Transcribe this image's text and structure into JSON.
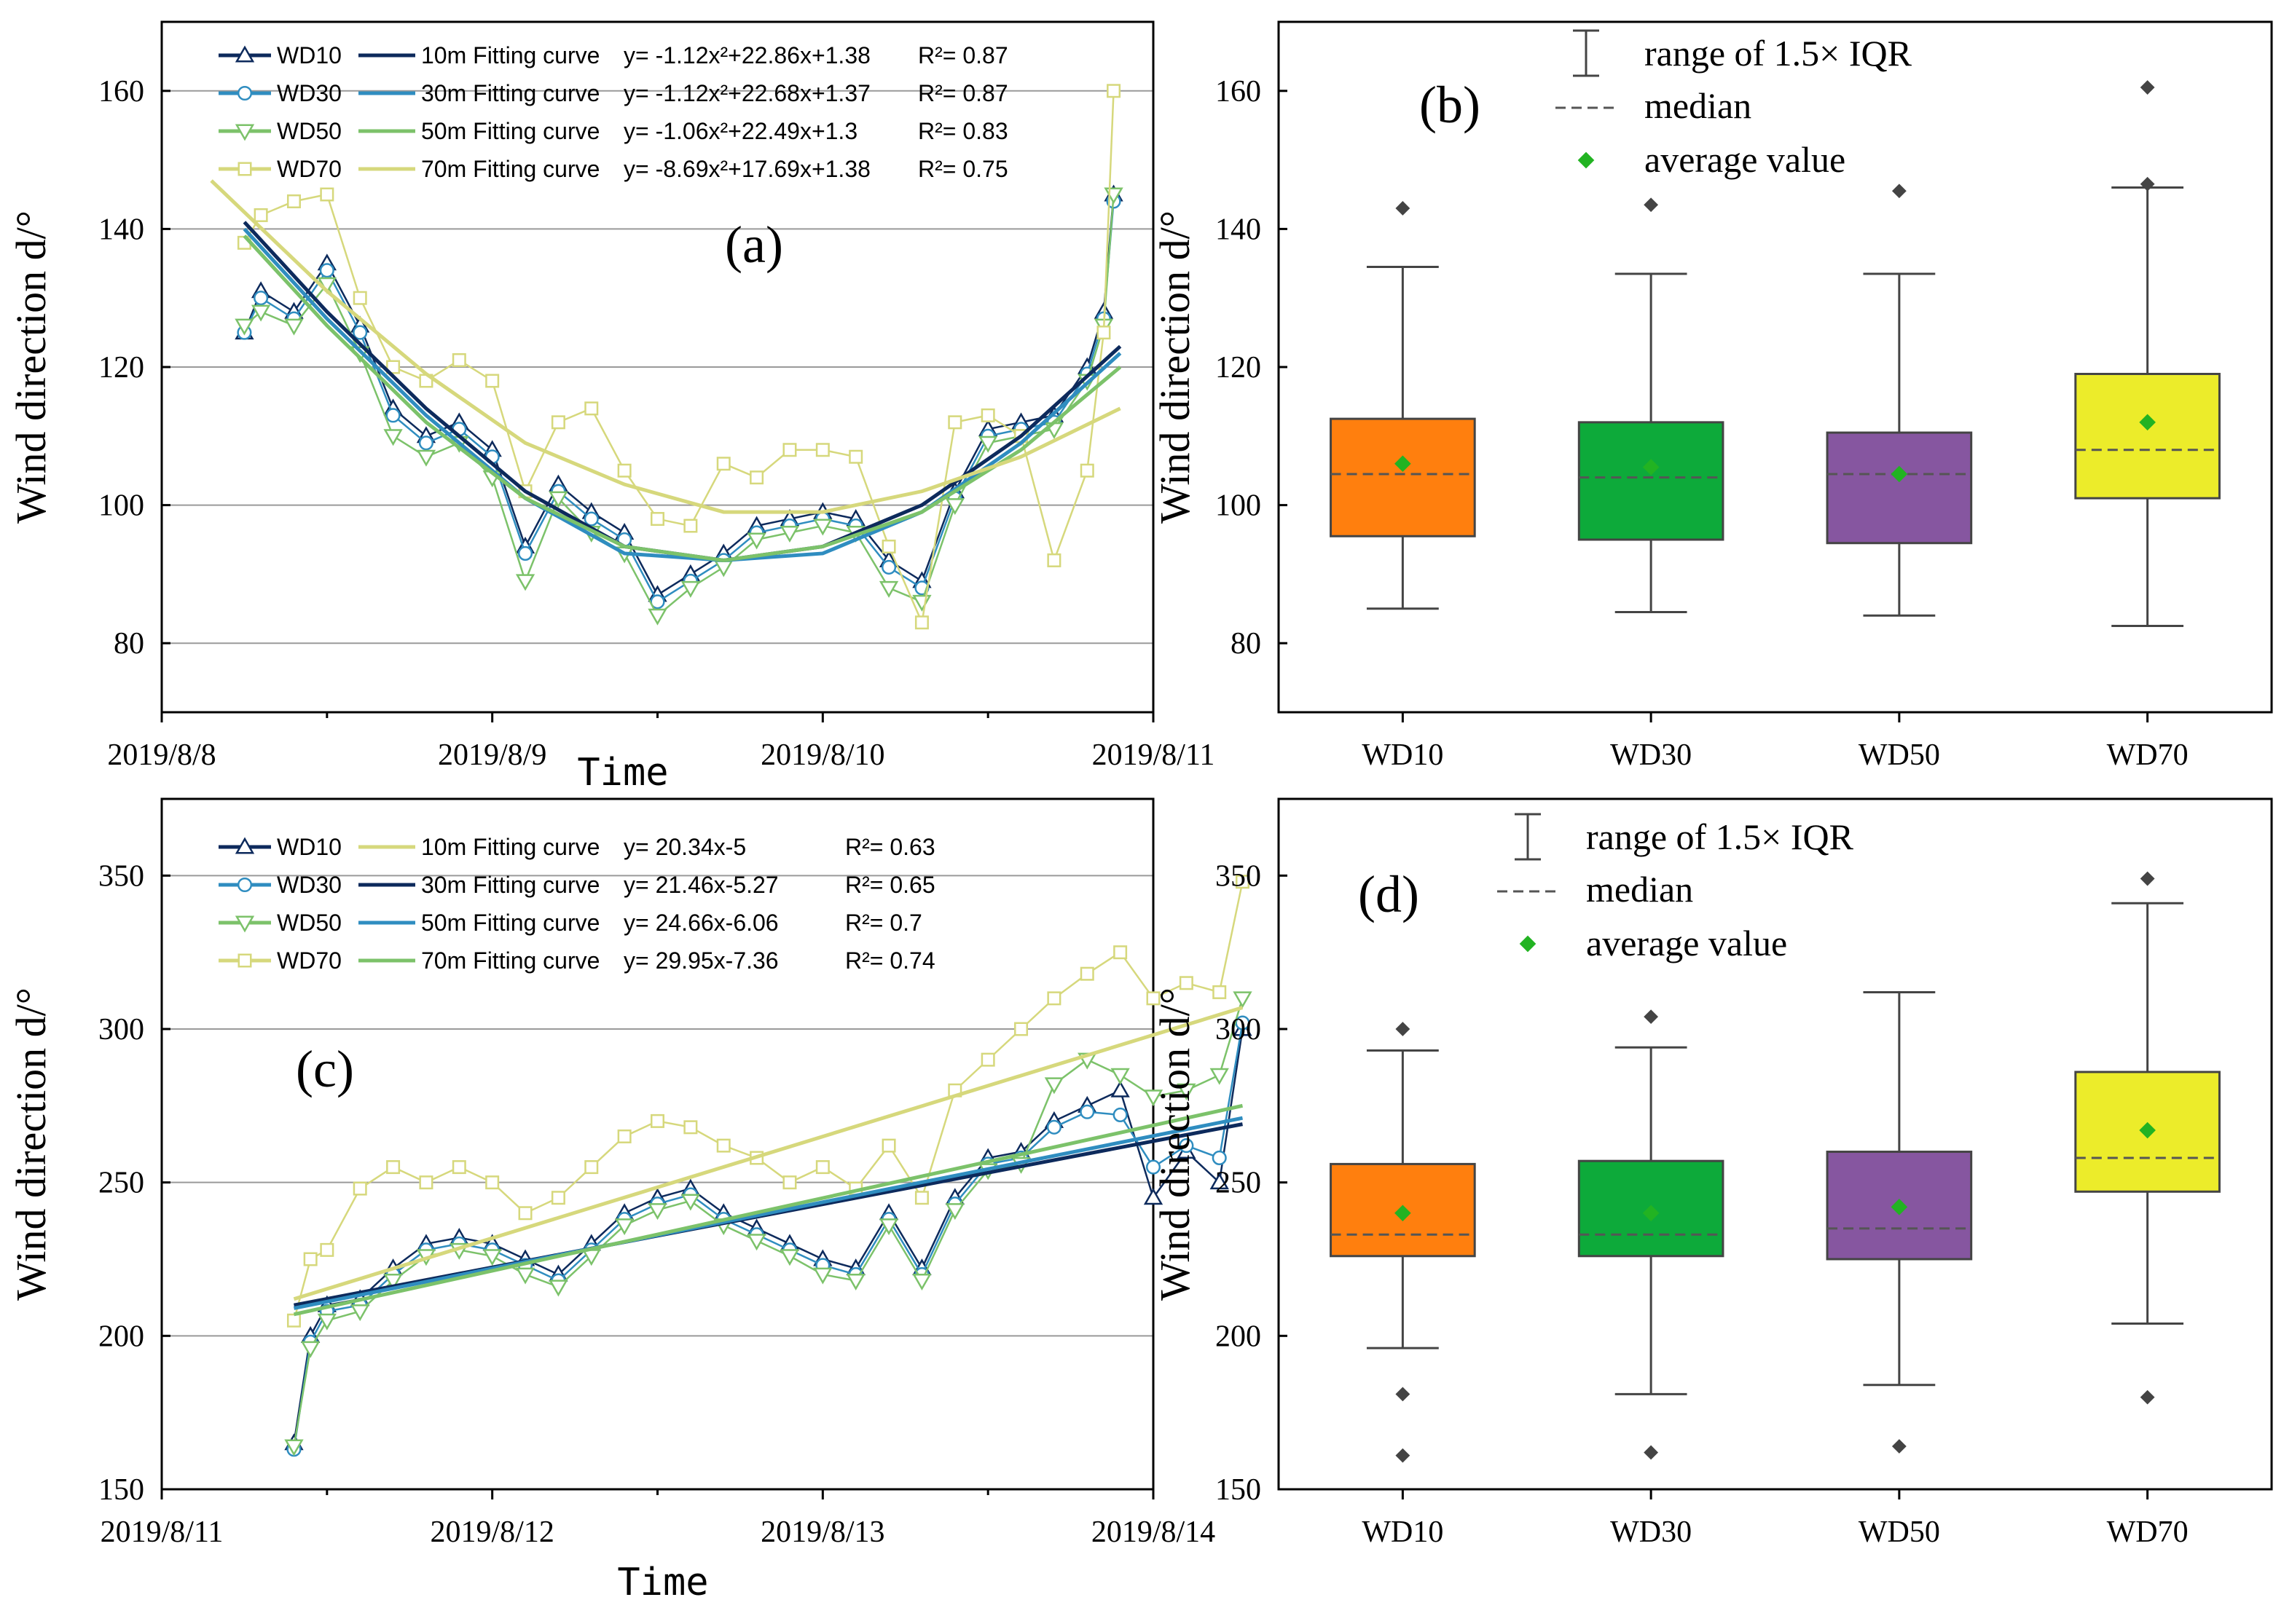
{
  "chart_data": [
    {
      "panel": "(a)",
      "type": "line",
      "ylabel": "Wind direction d/°",
      "xlabel": "Time",
      "ylim": [
        70,
        170
      ],
      "yticks": [
        80,
        100,
        120,
        140,
        160
      ],
      "xlim": [
        0,
        3
      ],
      "xticks": [
        0,
        1,
        2,
        3
      ],
      "xtick_labels": [
        "2019/8/8",
        "2019/8/9",
        "2019/8/10",
        "2019/8/11"
      ],
      "grid": true,
      "legend": [
        {
          "marker": "WD10",
          "curve": "10m Fitting curve",
          "eq": "y= -1.12x²+22.86x+1.38",
          "r2": "R²= 0.87"
        },
        {
          "marker": "WD30",
          "curve": "30m Fitting curve",
          "eq": "y= -1.12x²+22.68x+1.37",
          "r2": "R²= 0.87"
        },
        {
          "marker": "WD50",
          "curve": "50m Fitting curve",
          "eq": "y= -1.06x²+22.49x+1.3",
          "r2": "R²= 0.83"
        },
        {
          "marker": "WD70",
          "curve": "70m Fitting curve",
          "eq": "y= -8.69x²+17.69x+1.38",
          "r2": "R²= 0.75"
        }
      ],
      "series": [
        {
          "name": "WD10",
          "color": "#0d2a5c",
          "marker": "triangle-up",
          "x": [
            0.25,
            0.3,
            0.4,
            0.5,
            0.6,
            0.7,
            0.8,
            0.9,
            1.0,
            1.1,
            1.2,
            1.3,
            1.4,
            1.5,
            1.6,
            1.7,
            1.8,
            1.9,
            2.0,
            2.1,
            2.2,
            2.3,
            2.4,
            2.5,
            2.6,
            2.7,
            2.8,
            2.85,
            2.88
          ],
          "y": [
            125,
            131,
            128,
            135,
            126,
            114,
            110,
            112,
            108,
            94,
            103,
            99,
            96,
            87,
            90,
            93,
            97,
            98,
            99,
            98,
            92,
            89,
            102,
            111,
            112,
            113,
            120,
            128,
            145
          ]
        },
        {
          "name": "WD30",
          "color": "#2f8dc0",
          "marker": "circle",
          "x": [
            0.25,
            0.3,
            0.4,
            0.5,
            0.6,
            0.7,
            0.8,
            0.9,
            1.0,
            1.1,
            1.2,
            1.3,
            1.4,
            1.5,
            1.6,
            1.7,
            1.8,
            1.9,
            2.0,
            2.1,
            2.2,
            2.3,
            2.4,
            2.5,
            2.6,
            2.7,
            2.8,
            2.85,
            2.88
          ],
          "y": [
            125,
            130,
            127,
            134,
            125,
            113,
            109,
            111,
            107,
            93,
            102,
            98,
            95,
            86,
            89,
            92,
            96,
            97,
            98,
            97,
            91,
            88,
            101,
            110,
            111,
            112,
            119,
            127,
            144
          ]
        },
        {
          "name": "WD50",
          "color": "#7cc26a",
          "marker": "triangle-down",
          "x": [
            0.25,
            0.3,
            0.4,
            0.5,
            0.6,
            0.7,
            0.8,
            0.9,
            1.0,
            1.1,
            1.2,
            1.3,
            1.4,
            1.5,
            1.6,
            1.7,
            1.8,
            1.9,
            2.0,
            2.1,
            2.2,
            2.3,
            2.4,
            2.5,
            2.6,
            2.7,
            2.8,
            2.85,
            2.88
          ],
          "y": [
            126,
            128,
            126,
            132,
            122,
            110,
            107,
            109,
            104,
            89,
            101,
            96,
            93,
            84,
            88,
            91,
            95,
            96,
            97,
            96,
            88,
            86,
            100,
            109,
            110,
            111,
            118,
            126,
            145
          ]
        },
        {
          "name": "WD70",
          "color": "#d6d87c",
          "marker": "square",
          "x": [
            0.25,
            0.3,
            0.4,
            0.5,
            0.6,
            0.7,
            0.8,
            0.9,
            1.0,
            1.1,
            1.2,
            1.3,
            1.4,
            1.5,
            1.6,
            1.7,
            1.8,
            1.9,
            2.0,
            2.1,
            2.2,
            2.3,
            2.4,
            2.5,
            2.6,
            2.7,
            2.8,
            2.85,
            2.88
          ],
          "y": [
            138,
            142,
            144,
            145,
            130,
            120,
            118,
            121,
            118,
            102,
            112,
            114,
            105,
            98,
            97,
            106,
            104,
            108,
            108,
            107,
            94,
            83,
            112,
            113,
            110,
            92,
            105,
            125,
            160
          ]
        }
      ],
      "fits": [
        {
          "name": "10m Fitting curve",
          "color": "#0d2a5c",
          "x": [
            0.25,
            0.5,
            0.8,
            1.1,
            1.4,
            1.7,
            2.0,
            2.3,
            2.6,
            2.9
          ],
          "y": [
            141,
            128,
            114,
            102,
            94,
            92,
            94,
            100,
            110,
            123
          ]
        },
        {
          "name": "30m Fitting curve",
          "color": "#2f8dc0",
          "x": [
            0.25,
            0.5,
            0.8,
            1.1,
            1.4,
            1.7,
            2.0,
            2.3,
            2.6,
            2.9
          ],
          "y": [
            140,
            127,
            113,
            101,
            93,
            92,
            93,
            99,
            109,
            122
          ]
        },
        {
          "name": "50m Fitting curve",
          "color": "#7cc26a",
          "x": [
            0.25,
            0.5,
            0.8,
            1.1,
            1.4,
            1.7,
            2.0,
            2.3,
            2.6,
            2.9
          ],
          "y": [
            139,
            126,
            112,
            101,
            94,
            92,
            94,
            99,
            108,
            120
          ]
        },
        {
          "name": "70m Fitting curve",
          "color": "#d6d87c",
          "x": [
            0.15,
            0.5,
            0.8,
            1.1,
            1.4,
            1.7,
            2.0,
            2.3,
            2.6,
            2.9
          ],
          "y": [
            147,
            131,
            119,
            109,
            103,
            99,
            99,
            102,
            107,
            114
          ]
        }
      ]
    },
    {
      "panel": "(b)",
      "type": "box",
      "ylabel": "Wind direction d/°",
      "ylim": [
        70,
        170
      ],
      "yticks": [
        80,
        100,
        120,
        140,
        160
      ],
      "legend": {
        "whisker": "range of 1.5× IQR",
        "median": "median",
        "mean": "average value"
      },
      "categories": [
        "WD10",
        "WD30",
        "WD50",
        "WD70"
      ],
      "colors": [
        "#ff7f0e",
        "#0daa3a",
        "#8656a0",
        "#ecec2a"
      ],
      "boxes": [
        {
          "low": 85,
          "q1": 95.5,
          "median": 104.5,
          "q3": 112.5,
          "high": 134.5,
          "mean": 106,
          "outliers": [
            143
          ]
        },
        {
          "low": 84.5,
          "q1": 95,
          "median": 104,
          "q3": 112,
          "high": 133.5,
          "mean": 105.5,
          "outliers": [
            143.5
          ]
        },
        {
          "low": 84,
          "q1": 94.5,
          "median": 104.5,
          "q3": 110.5,
          "high": 133.5,
          "mean": 104.5,
          "outliers": [
            145.5
          ]
        },
        {
          "low": 82.5,
          "q1": 101,
          "median": 108,
          "q3": 119,
          "high": 146,
          "mean": 112,
          "outliers": [
            146.5,
            160.5
          ]
        }
      ]
    },
    {
      "panel": "(c)",
      "type": "line",
      "ylabel": "Wind direction d/°",
      "xlabel": "Time",
      "ylim": [
        150,
        375
      ],
      "yticks": [
        150,
        200,
        250,
        300,
        350
      ],
      "xlim": [
        0,
        3
      ],
      "xticks": [
        0,
        1,
        2,
        3
      ],
      "xtick_labels": [
        "2019/8/11",
        "2019/8/12",
        "2019/8/13",
        "2019/8/14"
      ],
      "grid": true,
      "legend": [
        {
          "marker": "WD10",
          "curve": "10m Fitting curve",
          "eq": "y= 20.34x-5",
          "r2": "R²= 0.63"
        },
        {
          "marker": "WD30",
          "curve": "30m Fitting curve",
          "eq": "y= 21.46x-5.27",
          "r2": "R²= 0.65"
        },
        {
          "marker": "WD50",
          "curve": "50m Fitting curve",
          "eq": "y= 24.66x-6.06",
          "r2": "R²= 0.7"
        },
        {
          "marker": "WD70",
          "curve": "70m Fitting curve",
          "eq": "y= 29.95x-7.36",
          "r2": "R²= 0.74"
        }
      ],
      "series": [
        {
          "name": "WD10",
          "color": "#0d2a5c",
          "marker": "triangle-up",
          "x": [
            0.4,
            0.45,
            0.5,
            0.6,
            0.7,
            0.8,
            0.9,
            1.0,
            1.1,
            1.2,
            1.3,
            1.4,
            1.5,
            1.6,
            1.7,
            1.8,
            1.9,
            2.0,
            2.1,
            2.2,
            2.3,
            2.4,
            2.5,
            2.6,
            2.7,
            2.8,
            2.9,
            3.0,
            3.1,
            3.2,
            3.27
          ],
          "y": [
            165,
            200,
            210,
            212,
            222,
            230,
            232,
            230,
            225,
            220,
            230,
            240,
            245,
            248,
            240,
            235,
            230,
            225,
            222,
            240,
            222,
            245,
            258,
            260,
            270,
            275,
            280,
            245,
            260,
            250,
            300
          ]
        },
        {
          "name": "WD30",
          "color": "#2f8dc0",
          "marker": "circle",
          "x": [
            0.4,
            0.45,
            0.5,
            0.6,
            0.7,
            0.8,
            0.9,
            1.0,
            1.1,
            1.2,
            1.3,
            1.4,
            1.5,
            1.6,
            1.7,
            1.8,
            1.9,
            2.0,
            2.1,
            2.2,
            2.3,
            2.4,
            2.5,
            2.6,
            2.7,
            2.8,
            2.9,
            3.0,
            3.1,
            3.2,
            3.27
          ],
          "y": [
            163,
            198,
            208,
            210,
            220,
            228,
            230,
            228,
            223,
            218,
            228,
            238,
            243,
            246,
            238,
            233,
            228,
            223,
            220,
            238,
            220,
            243,
            256,
            258,
            268,
            273,
            272,
            255,
            262,
            258,
            302
          ]
        },
        {
          "name": "WD50",
          "color": "#7cc26a",
          "marker": "triangle-down",
          "x": [
            0.4,
            0.45,
            0.5,
            0.6,
            0.7,
            0.8,
            0.9,
            1.0,
            1.1,
            1.2,
            1.3,
            1.4,
            1.5,
            1.6,
            1.7,
            1.8,
            1.9,
            2.0,
            2.1,
            2.2,
            2.3,
            2.4,
            2.5,
            2.6,
            2.7,
            2.8,
            2.9,
            3.0,
            3.1,
            3.2,
            3.27
          ],
          "y": [
            164,
            196,
            205,
            208,
            218,
            226,
            228,
            226,
            220,
            216,
            226,
            236,
            241,
            244,
            236,
            231,
            226,
            220,
            218,
            236,
            218,
            241,
            254,
            256,
            282,
            290,
            285,
            278,
            280,
            285,
            310
          ]
        },
        {
          "name": "WD70",
          "color": "#d6d87c",
          "marker": "square",
          "x": [
            0.4,
            0.45,
            0.5,
            0.6,
            0.7,
            0.8,
            0.9,
            1.0,
            1.1,
            1.2,
            1.3,
            1.4,
            1.5,
            1.6,
            1.7,
            1.8,
            1.9,
            2.0,
            2.1,
            2.2,
            2.3,
            2.4,
            2.5,
            2.6,
            2.7,
            2.8,
            2.9,
            3.0,
            3.1,
            3.2,
            3.27
          ],
          "y": [
            205,
            225,
            228,
            248,
            255,
            250,
            255,
            250,
            240,
            245,
            255,
            265,
            270,
            268,
            262,
            258,
            250,
            255,
            248,
            262,
            245,
            280,
            290,
            300,
            310,
            318,
            325,
            310,
            315,
            312,
            348
          ]
        }
      ],
      "fits": [
        {
          "name": "10m Fitting curve",
          "color": "#d6d87c",
          "x": [
            0.4,
            3.27
          ],
          "y": [
            212,
            307
          ]
        },
        {
          "name": "30m Fitting curve",
          "color": "#0d2a5c",
          "x": [
            0.4,
            3.27
          ],
          "y": [
            210,
            269
          ]
        },
        {
          "name": "50m Fitting curve",
          "color": "#2f8dc0",
          "x": [
            0.4,
            3.27
          ],
          "y": [
            209,
            271
          ]
        },
        {
          "name": "70m Fitting curve",
          "color": "#7cc26a",
          "x": [
            0.4,
            3.27
          ],
          "y": [
            207,
            275
          ]
        }
      ]
    },
    {
      "panel": "(d)",
      "type": "box",
      "ylabel": "Wind direction d/°",
      "ylim": [
        150,
        375
      ],
      "yticks": [
        150,
        200,
        250,
        300,
        350
      ],
      "legend": {
        "whisker": "range of 1.5× IQR",
        "median": "median",
        "mean": "average value"
      },
      "categories": [
        "WD10",
        "WD30",
        "WD50",
        "WD70"
      ],
      "colors": [
        "#ff7f0e",
        "#0daa3a",
        "#8656a0",
        "#ecec2a"
      ],
      "boxes": [
        {
          "low": 196,
          "q1": 226,
          "median": 233,
          "q3": 256,
          "high": 293,
          "mean": 240,
          "outliers": [
            161,
            181,
            300
          ]
        },
        {
          "low": 181,
          "q1": 226,
          "median": 233,
          "q3": 257,
          "high": 294,
          "mean": 240,
          "outliers": [
            162,
            304
          ]
        },
        {
          "low": 184,
          "q1": 225,
          "median": 235,
          "q3": 260,
          "high": 312,
          "mean": 242,
          "outliers": [
            164
          ]
        },
        {
          "low": 204,
          "q1": 247,
          "median": 258,
          "q3": 286,
          "high": 341,
          "mean": 267,
          "outliers": [
            180,
            349
          ]
        }
      ]
    }
  ]
}
